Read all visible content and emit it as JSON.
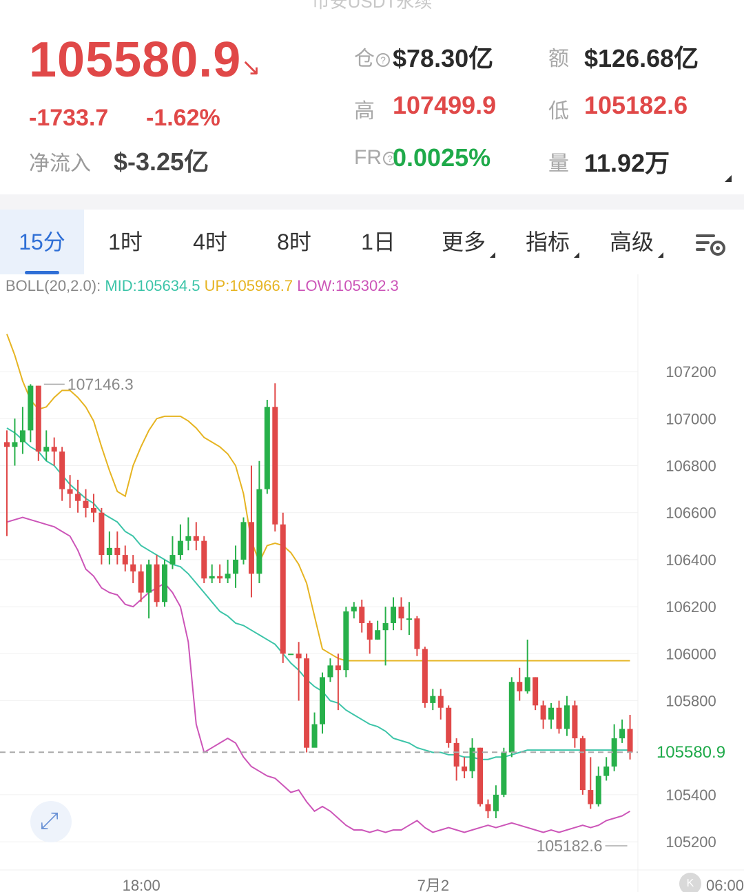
{
  "header": {
    "title_cut": "币安USDT永续",
    "last_price": "105580.9",
    "change_abs": "-1733.7",
    "change_pct": "-1.62%",
    "net_inflow_label": "净流入",
    "net_inflow_value": "$-3.25亿"
  },
  "stats": {
    "oi_label": "仓",
    "oi_value": "$78.30亿",
    "turnover_label": "额",
    "turnover_value": "$126.68亿",
    "high_label": "高",
    "high_value": "107499.9",
    "low_label": "低",
    "low_value": "105182.6",
    "fr_label": "FR",
    "fr_value": "0.0025%",
    "volume_label": "量",
    "volume_value": "11.92万"
  },
  "tabs": [
    {
      "label": "15分",
      "active": true
    },
    {
      "label": "1时"
    },
    {
      "label": "4时"
    },
    {
      "label": "8时"
    },
    {
      "label": "1日"
    },
    {
      "label": "更多"
    },
    {
      "label": "指标"
    },
    {
      "label": "高级"
    }
  ],
  "boll": {
    "name": "BOLL(20,2.0):",
    "mid": "MID:105634.5",
    "up": "UP:105966.7",
    "low": "LOW:105302.3"
  },
  "colors": {
    "up": "#27b04a",
    "down": "#e04848",
    "mid": "#3cc4a8",
    "upper": "#e6b422",
    "lower": "#cc55b8"
  },
  "chart_data": {
    "type": "candlestick",
    "ylim": [
      105080,
      107520
    ],
    "y_ticks": [
      "107200",
      "107000",
      "106800",
      "106600",
      "106400",
      "106200",
      "106000",
      "105800",
      "105400",
      "105200"
    ],
    "y_tick_values": [
      107200,
      107000,
      106800,
      106600,
      106400,
      106200,
      106000,
      105800,
      105400,
      105200
    ],
    "x_labels": [
      "18:00",
      "7月2",
      "06:00"
    ],
    "x_label_index": [
      16,
      53,
      90
    ],
    "last_price": 105580.9,
    "last_price_label": "105580.9",
    "high_label": "107146.3",
    "high_index": 4,
    "high_value": 107146.3,
    "low_label": "105182.6",
    "low_index": 79,
    "low_value": 105182.6,
    "candles": [
      [
        106900,
        106880,
        106950,
        106500
      ],
      [
        106880,
        106900,
        107000,
        106800
      ],
      [
        106900,
        106950,
        107050,
        106850
      ],
      [
        106950,
        107140,
        107146.3,
        106900
      ],
      [
        107140,
        106860,
        107140,
        106820
      ],
      [
        106860,
        106880,
        106950,
        106820
      ],
      [
        106880,
        106860,
        106920,
        106800
      ],
      [
        106860,
        106700,
        106880,
        106650
      ],
      [
        106700,
        106680,
        106760,
        106620
      ],
      [
        106680,
        106650,
        106740,
        106600
      ],
      [
        106650,
        106620,
        106700,
        106580
      ],
      [
        106620,
        106600,
        106680,
        106560
      ],
      [
        106600,
        106420,
        106620,
        106380
      ],
      [
        106420,
        106450,
        106520,
        106380
      ],
      [
        106450,
        106420,
        106520,
        106380
      ],
      [
        106420,
        106380,
        106460,
        106350
      ],
      [
        106380,
        106350,
        106420,
        106300
      ],
      [
        106350,
        106260,
        106380,
        106220
      ],
      [
        106260,
        106380,
        106400,
        106150
      ],
      [
        106380,
        106220,
        106420,
        106200
      ],
      [
        106220,
        106380,
        106400,
        106200
      ],
      [
        106380,
        106420,
        106500,
        106360
      ],
      [
        106420,
        106480,
        106550,
        106400
      ],
      [
        106480,
        106500,
        106580,
        106440
      ],
      [
        106500,
        106480,
        106560,
        106440
      ],
      [
        106480,
        106320,
        106500,
        106300
      ],
      [
        106320,
        106330,
        106380,
        106300
      ],
      [
        106330,
        106320,
        106380,
        106300
      ],
      [
        106320,
        106340,
        106400,
        106300
      ],
      [
        106340,
        106400,
        106460,
        106280
      ],
      [
        106400,
        106560,
        106580,
        106380
      ],
      [
        106560,
        106340,
        106800,
        106240
      ],
      [
        106340,
        106700,
        106820,
        106300
      ],
      [
        106700,
        107050,
        107080,
        106680
      ],
      [
        107050,
        106550,
        107150,
        106520
      ],
      [
        106550,
        106000,
        106600,
        105960
      ],
      [
        106000,
        106000,
        106000,
        106000
      ],
      [
        106000,
        105980,
        106050,
        105800
      ],
      [
        105980,
        105600,
        106000,
        105580
      ],
      [
        105600,
        105700,
        105750,
        105620
      ],
      [
        105700,
        105900,
        105920,
        105660
      ],
      [
        105900,
        105950,
        105980,
        105880
      ],
      [
        105950,
        105930,
        106000,
        105760
      ],
      [
        105930,
        106180,
        106200,
        105900
      ],
      [
        106180,
        106200,
        106220,
        106150
      ],
      [
        106200,
        106130,
        106230,
        106090
      ],
      [
        106130,
        106060,
        106140,
        106000
      ],
      [
        106060,
        106100,
        106140,
        106060
      ],
      [
        106100,
        106130,
        106200,
        105950
      ],
      [
        106130,
        106200,
        106240,
        106100
      ],
      [
        106200,
        106150,
        106240,
        106100
      ],
      [
        106150,
        106150,
        106220,
        106080
      ],
      [
        106150,
        106020,
        106160,
        105990
      ],
      [
        106020,
        105790,
        106030,
        105770
      ],
      [
        105790,
        105820,
        105850,
        105760
      ],
      [
        105820,
        105770,
        105850,
        105720
      ],
      [
        105770,
        105620,
        105780,
        105600
      ],
      [
        105620,
        105520,
        105640,
        105460
      ],
      [
        105520,
        105500,
        105560,
        105470
      ],
      [
        105500,
        105600,
        105640,
        105470
      ],
      [
        105600,
        105360,
        105600,
        105350
      ],
      [
        105360,
        105330,
        105380,
        105300
      ],
      [
        105330,
        105400,
        105440,
        105300
      ],
      [
        105400,
        105580,
        105600,
        105390
      ],
      [
        105580,
        105880,
        105900,
        105560
      ],
      [
        105880,
        105840,
        105940,
        105800
      ],
      [
        105840,
        105900,
        106060,
        105830
      ],
      [
        105900,
        105780,
        105900,
        105760
      ],
      [
        105780,
        105720,
        105800,
        105680
      ],
      [
        105720,
        105770,
        105790,
        105680
      ],
      [
        105770,
        105680,
        105800,
        105660
      ],
      [
        105680,
        105780,
        105820,
        105650
      ],
      [
        105780,
        105640,
        105800,
        105600
      ],
      [
        105640,
        105420,
        105650,
        105400
      ],
      [
        105420,
        105360,
        105560,
        105340
      ],
      [
        105360,
        105480,
        105520,
        105350
      ],
      [
        105480,
        105520,
        105560,
        105460
      ],
      [
        105520,
        105640,
        105700,
        105500
      ],
      [
        105640,
        105680,
        105720,
        105620
      ],
      [
        105680,
        105580,
        105740,
        105550
      ]
    ],
    "boll_mid": [
      106960,
      106940,
      106910,
      106880,
      106860,
      106820,
      106800,
      106760,
      106720,
      106690,
      106660,
      106640,
      106600,
      106580,
      106560,
      106520,
      106500,
      106460,
      106440,
      106420,
      106400,
      106380,
      106370,
      106340,
      106300,
      106260,
      106220,
      106180,
      106160,
      106130,
      106120,
      106100,
      106080,
      106060,
      106040,
      106000,
      105960,
      105930,
      105890,
      105860,
      105840,
      105800,
      105790,
      105760,
      105740,
      105720,
      105700,
      105690,
      105670,
      105640,
      105630,
      105620,
      105600,
      105590,
      105580,
      105580,
      105570,
      105570,
      105560,
      105560,
      105550,
      105550,
      105560,
      105560,
      105570,
      105580,
      105590,
      105590,
      105590,
      105590,
      105590,
      105590,
      105590,
      105590,
      105590,
      105590,
      105590,
      105590,
      105590,
      105590
    ],
    "boll_up": [
      107360,
      107270,
      107160,
      107080,
      107040,
      107050,
      107090,
      107120,
      107120,
      107090,
      107050,
      106990,
      106880,
      106780,
      106690,
      106670,
      106800,
      106880,
      106950,
      107000,
      107010,
      107010,
      107010,
      106990,
      106960,
      106920,
      106900,
      106880,
      106850,
      106800,
      106680,
      106480,
      106390,
      106460,
      106470,
      106460,
      106430,
      106380,
      106300,
      106160,
      106020,
      106000,
      105980,
      105970,
      105970,
      105970,
      105970,
      105970,
      105970,
      105970,
      105970,
      105970,
      105970,
      105970,
      105970,
      105970,
      105970,
      105970,
      105970,
      105970,
      105970,
      105970,
      105970,
      105970,
      105970,
      105970,
      105970,
      105970,
      105970,
      105970,
      105970,
      105970,
      105970,
      105970,
      105970,
      105970,
      105970,
      105970,
      105970,
      105970
    ],
    "boll_low": [
      106560,
      106570,
      106580,
      106570,
      106560,
      106550,
      106540,
      106520,
      106500,
      106440,
      106360,
      106330,
      106280,
      106260,
      106250,
      106210,
      106200,
      106230,
      106260,
      106280,
      106300,
      106260,
      106200,
      106050,
      105700,
      105580,
      105600,
      105620,
      105640,
      105620,
      105560,
      105520,
      105500,
      105480,
      105470,
      105440,
      105410,
      105420,
      105370,
      105330,
      105350,
      105330,
      105300,
      105270,
      105250,
      105250,
      105240,
      105250,
      105240,
      105250,
      105250,
      105270,
      105290,
      105260,
      105240,
      105250,
      105260,
      105250,
      105240,
      105250,
      105260,
      105270,
      105260,
      105270,
      105280,
      105270,
      105260,
      105250,
      105240,
      105250,
      105240,
      105250,
      105260,
      105270,
      105260,
      105270,
      105290,
      105300,
      105310,
      105330
    ]
  }
}
